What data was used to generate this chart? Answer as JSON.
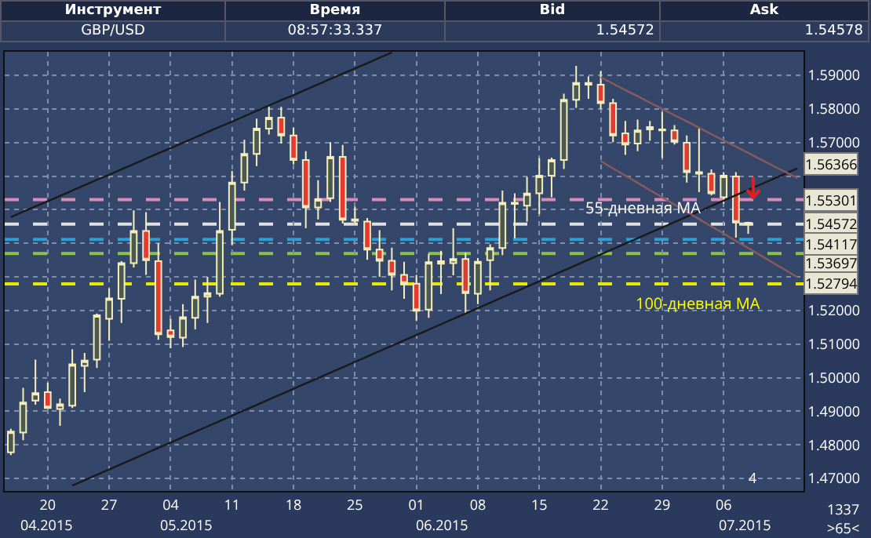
{
  "chart_data": [
    {
      "type": "other",
      "categories": [
        "Инструмент",
        "Время",
        "Bid",
        "Ask"
      ],
      "annotations": [
        "GBP/USD",
        "08:57:33.337",
        "1.54572",
        "1.54578"
      ]
    },
    {
      "type": "candlestick",
      "categories": [
        null,
        null,
        null,
        "20",
        null,
        null,
        null,
        null,
        "27",
        null,
        null,
        null,
        null,
        "04",
        null,
        null,
        null,
        null,
        "11",
        null,
        null,
        null,
        null,
        "18",
        null,
        null,
        null,
        null,
        "25",
        null,
        null,
        null,
        null,
        "01",
        null,
        null,
        null,
        null,
        "08",
        null,
        null,
        null,
        null,
        "15",
        null,
        null,
        null,
        null,
        "22",
        null,
        null,
        null,
        null,
        "29",
        null,
        null,
        null,
        null,
        "06",
        null,
        null,
        null,
        null,
        null,
        null
      ],
      "ohlc": [
        [
          1.4778,
          1.4848,
          1.477,
          1.484
        ],
        [
          1.4837,
          1.497,
          1.4814,
          1.4926
        ],
        [
          1.4932,
          1.5054,
          1.492,
          1.4954
        ],
        [
          1.4957,
          1.4985,
          1.4907,
          1.491
        ],
        [
          1.4907,
          1.4938,
          1.4857,
          1.4921
        ],
        [
          1.4917,
          1.5085,
          1.491,
          1.504
        ],
        [
          1.5035,
          1.5074,
          1.4957,
          1.5051
        ],
        [
          1.5054,
          1.5191,
          1.5029,
          1.5186
        ],
        [
          1.5175,
          1.5266,
          1.511,
          1.5236
        ],
        [
          1.5235,
          1.5347,
          1.5163,
          1.5341
        ],
        [
          1.5341,
          1.5498,
          1.5328,
          1.5437
        ],
        [
          1.5437,
          1.5493,
          1.5306,
          1.535
        ],
        [
          1.5347,
          1.54,
          1.5113,
          1.5129
        ],
        [
          1.5141,
          1.5175,
          1.5088,
          1.5121
        ],
        [
          1.5119,
          1.5219,
          1.5091,
          1.518
        ],
        [
          1.5178,
          1.5292,
          1.5144,
          1.5241
        ],
        [
          1.5241,
          1.53,
          1.5163,
          1.5252
        ],
        [
          1.525,
          1.5523,
          1.5241,
          1.5437
        ],
        [
          1.544,
          1.5615,
          1.5394,
          1.5581
        ],
        [
          1.5581,
          1.5708,
          1.5557,
          1.5666
        ],
        [
          1.5666,
          1.5771,
          1.563,
          1.5741
        ],
        [
          1.5741,
          1.5811,
          1.5724,
          1.5774
        ],
        [
          1.5774,
          1.5806,
          1.5697,
          1.5721
        ],
        [
          1.5721,
          1.5744,
          1.5635,
          1.5648
        ],
        [
          1.5648,
          1.5674,
          1.5445,
          1.5507
        ],
        [
          1.5507,
          1.5588,
          1.5471,
          1.5531
        ],
        [
          1.5534,
          1.5701,
          1.5523,
          1.5657
        ],
        [
          1.5657,
          1.5693,
          1.5459,
          1.547
        ],
        [
          1.5467,
          1.5509,
          1.5453,
          1.5471
        ],
        [
          1.5465,
          1.5475,
          1.5351,
          1.5381
        ],
        [
          1.5381,
          1.5439,
          1.53,
          1.5348
        ],
        [
          1.5348,
          1.5387,
          1.526,
          1.5306
        ],
        [
          1.5306,
          1.5345,
          1.5235,
          1.528
        ],
        [
          1.528,
          1.5306,
          1.5169,
          1.5199
        ],
        [
          1.5203,
          1.5369,
          1.5178,
          1.5344
        ],
        [
          1.5339,
          1.5378,
          1.5249,
          1.5347
        ],
        [
          1.5341,
          1.5445,
          1.5305,
          1.5353
        ],
        [
          1.5353,
          1.5372,
          1.5188,
          1.5252
        ],
        [
          1.525,
          1.5356,
          1.5219,
          1.5345
        ],
        [
          1.535,
          1.5397,
          1.526,
          1.5386
        ],
        [
          1.5386,
          1.5557,
          1.5365,
          1.5521
        ],
        [
          1.5517,
          1.5549,
          1.5415,
          1.5521
        ],
        [
          1.5512,
          1.5598,
          1.5464,
          1.5548
        ],
        [
          1.5549,
          1.5654,
          1.5487,
          1.5601
        ],
        [
          1.5601,
          1.5655,
          1.5537,
          1.5648
        ],
        [
          1.5648,
          1.5845,
          1.5621,
          1.5827
        ],
        [
          1.5827,
          1.5928,
          1.5803,
          1.5877
        ],
        [
          1.5872,
          1.5897,
          1.583,
          1.5877
        ],
        [
          1.5872,
          1.5912,
          1.5799,
          1.5817
        ],
        [
          1.5817,
          1.583,
          1.5701,
          1.5721
        ],
        [
          1.5727,
          1.5764,
          1.5663,
          1.5694
        ],
        [
          1.5697,
          1.5768,
          1.5674,
          1.5736
        ],
        [
          1.5746,
          1.5764,
          1.5705,
          1.5739
        ],
        [
          1.5736,
          1.5791,
          1.5654,
          1.5739
        ],
        [
          1.5736,
          1.5752,
          1.5694,
          1.5702
        ],
        [
          1.5699,
          1.5721,
          1.5581,
          1.5612
        ],
        [
          1.5607,
          1.5743,
          1.5552,
          1.5612
        ],
        [
          1.5607,
          1.562,
          1.5543,
          1.5549
        ],
        [
          1.5537,
          1.5612,
          1.5518,
          1.5601
        ],
        [
          1.5599,
          1.5612,
          1.5417,
          1.5462
        ],
        [
          1.5456,
          1.5464,
          1.5428,
          1.5461
        ],
        null,
        null,
        null,
        null
      ],
      "series": [
        {
          "type": "line",
          "color": "#1a1a1a",
          "values": [
            1.5478,
            1.5494,
            1.551,
            1.5525,
            1.5541,
            1.5557,
            1.5573,
            1.5589,
            1.5604,
            1.562,
            1.5636,
            1.5652,
            1.5668,
            1.5683,
            1.5699,
            1.5715,
            1.5731,
            1.5747,
            1.5762,
            1.5778,
            1.5794,
            1.581,
            1.5826,
            1.5841,
            1.5857,
            1.5873,
            1.5889,
            1.5905,
            1.592,
            1.5936,
            1.5952,
            1.5968,
            null,
            null,
            null,
            null,
            null,
            null,
            null,
            null,
            null,
            null,
            null,
            null,
            null,
            null,
            null,
            null,
            null,
            null,
            null,
            null,
            null,
            null,
            null,
            null,
            null,
            null,
            null,
            null,
            null,
            null,
            null,
            null,
            null
          ]
        },
        {
          "type": "line",
          "color": "#1a1a1a",
          "values": [
            null,
            null,
            null,
            null,
            null,
            1.4679,
            1.4695,
            1.4711,
            1.4727,
            1.4743,
            1.4759,
            1.4775,
            1.4791,
            1.4807,
            1.4823,
            1.4839,
            1.4855,
            1.4871,
            1.4887,
            1.4903,
            1.4919,
            1.4935,
            1.4951,
            1.4967,
            1.4983,
            1.4999,
            1.5015,
            1.5031,
            1.5047,
            1.5063,
            1.5079,
            1.5095,
            1.5111,
            1.5127,
            1.5143,
            1.5159,
            1.5175,
            1.5191,
            1.5207,
            1.5223,
            1.5239,
            1.5255,
            1.5271,
            1.5287,
            1.5303,
            1.5319,
            1.5335,
            1.5351,
            1.5367,
            1.5383,
            1.5399,
            1.5415,
            1.5431,
            1.5447,
            1.5463,
            1.5479,
            1.5495,
            1.5511,
            1.5527,
            1.5543,
            1.5559,
            1.5575,
            1.5591,
            1.5607,
            1.5623
          ]
        },
        {
          "type": "line",
          "color": "#8a5a5a",
          "values": [
            null,
            null,
            null,
            null,
            null,
            null,
            null,
            null,
            null,
            null,
            null,
            null,
            null,
            null,
            null,
            null,
            null,
            null,
            null,
            null,
            null,
            null,
            null,
            null,
            null,
            null,
            null,
            null,
            null,
            null,
            null,
            null,
            null,
            null,
            null,
            null,
            null,
            null,
            null,
            null,
            null,
            null,
            null,
            null,
            null,
            null,
            null,
            null,
            1.5894,
            1.5875,
            1.5856,
            1.5838,
            1.5819,
            1.58,
            1.5781,
            1.5763,
            1.5744,
            1.5725,
            1.5706,
            1.5688,
            1.5669,
            1.565,
            1.5631,
            1.5613,
            1.5594
          ]
        },
        {
          "type": "line",
          "color": "#8a5a5a",
          "values": [
            null,
            null,
            null,
            null,
            null,
            null,
            null,
            null,
            null,
            null,
            null,
            null,
            null,
            null,
            null,
            null,
            null,
            null,
            null,
            null,
            null,
            null,
            null,
            null,
            null,
            null,
            null,
            null,
            null,
            null,
            null,
            null,
            null,
            null,
            null,
            null,
            null,
            null,
            null,
            null,
            null,
            null,
            null,
            null,
            null,
            null,
            null,
            null,
            1.5645,
            1.5623,
            1.5602,
            1.558,
            1.5558,
            1.5537,
            1.5515,
            1.5494,
            1.5472,
            1.545,
            1.5429,
            1.5407,
            1.5386,
            1.5364,
            1.5342,
            1.5321,
            1.5299
          ]
        }
      ],
      "ylim": [
        1.4663,
        1.597
      ],
      "yticks": [
        {
          "value": 1.47,
          "label": "1.47000"
        },
        {
          "value": 1.48,
          "label": "1.48000"
        },
        {
          "value": 1.49,
          "label": "1.49000"
        },
        {
          "value": 1.5,
          "label": "1.50000"
        },
        {
          "value": 1.51,
          "label": "1.51000"
        },
        {
          "value": 1.52,
          "label": "1.52000"
        },
        {
          "value": 1.53,
          "label": null
        },
        {
          "value": 1.54,
          "label": null
        },
        {
          "value": 1.55,
          "label": null
        },
        {
          "value": 1.56,
          "label": null
        },
        {
          "value": 1.57,
          "label": "1.57000"
        },
        {
          "value": 1.58,
          "label": "1.58000"
        },
        {
          "value": 1.59,
          "label": "1.59000"
        }
      ],
      "grid": true,
      "ref_lines": [
        {
          "axis": "y",
          "value": 1.53697,
          "label": "1.53697",
          "color": "#8bc34a",
          "line_style": "dashed"
        },
        {
          "axis": "y",
          "value": 1.55301,
          "label": "1.55301",
          "color": "#d88cb8",
          "line_style": "dashed"
        },
        {
          "axis": "y",
          "value": 1.54572,
          "label": "1.54572",
          "color": "#e0e0e0",
          "line_style": "dashed"
        },
        {
          "axis": "y",
          "value": 1.54117,
          "label": "1.54117",
          "color": "#2a9fd6",
          "line_style": "dashed"
        },
        {
          "axis": "y",
          "value": 1.52794,
          "label": "1.52794",
          "color": "#e8e800",
          "line_style": "dashed"
        }
      ],
      "annotations": [
        "04.2015",
        "05.2015",
        "06.2015",
        "07.2015",
        "1337",
        ">65<",
        "4",
        "55-дневная MA",
        "100-дневная MA",
        {
          "text": "1.56366",
          "y": 1.56366
        }
      ]
    }
  ]
}
